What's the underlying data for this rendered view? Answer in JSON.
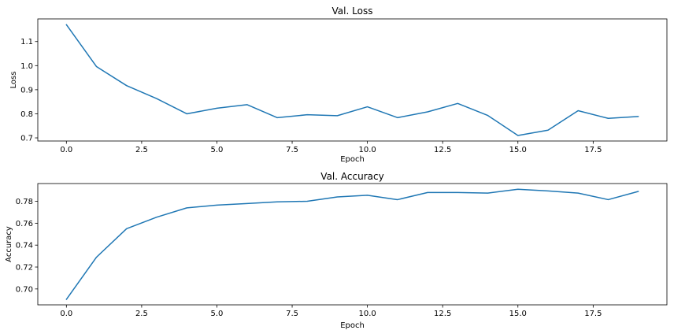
{
  "chart_data": [
    {
      "type": "line",
      "title": "Val. Loss",
      "xlabel": "Epoch",
      "ylabel": "Loss",
      "xlim": [
        -0.95,
        19.95
      ],
      "ylim": [
        0.687,
        1.194
      ],
      "xticks": [
        0.0,
        2.5,
        5.0,
        7.5,
        10.0,
        12.5,
        15.0,
        17.5
      ],
      "xtick_labels": [
        "0.0",
        "2.5",
        "5.0",
        "7.5",
        "10.0",
        "12.5",
        "15.0",
        "17.5"
      ],
      "yticks": [
        0.7,
        0.8,
        0.9,
        1.0,
        1.1
      ],
      "ytick_labels": [
        "0.7",
        "0.8",
        "0.9",
        "1.0",
        "1.1"
      ],
      "grid": false,
      "color": "#1f77b4",
      "series": [
        {
          "x": [
            0,
            1,
            2,
            3,
            4,
            5,
            6,
            7,
            8,
            9,
            10,
            11,
            12,
            13,
            14,
            15,
            16,
            17,
            18,
            19
          ],
          "values": [
            1.17,
            0.996,
            0.917,
            0.863,
            0.8,
            0.823,
            0.838,
            0.784,
            0.796,
            0.792,
            0.829,
            0.784,
            0.808,
            0.843,
            0.793,
            0.71,
            0.732,
            0.813,
            0.781,
            0.789
          ]
        }
      ]
    },
    {
      "type": "line",
      "title": "Val. Accuracy",
      "xlabel": "Epoch",
      "ylabel": "Accuracy",
      "xlim": [
        -0.95,
        19.95
      ],
      "ylim": [
        0.6855,
        0.7962
      ],
      "xticks": [
        0.0,
        2.5,
        5.0,
        7.5,
        10.0,
        12.5,
        15.0,
        17.5
      ],
      "xtick_labels": [
        "0.0",
        "2.5",
        "5.0",
        "7.5",
        "10.0",
        "12.5",
        "15.0",
        "17.5"
      ],
      "yticks": [
        0.7,
        0.72,
        0.74,
        0.76,
        0.78
      ],
      "ytick_labels": [
        "0.70",
        "0.72",
        "0.74",
        "0.76",
        "0.78"
      ],
      "grid": false,
      "color": "#1f77b4",
      "series": [
        {
          "x": [
            0,
            1,
            2,
            3,
            4,
            5,
            6,
            7,
            8,
            9,
            10,
            11,
            12,
            13,
            14,
            15,
            16,
            17,
            18,
            19
          ],
          "values": [
            0.6905,
            0.729,
            0.755,
            0.7655,
            0.774,
            0.7765,
            0.778,
            0.7795,
            0.78,
            0.784,
            0.7855,
            0.7815,
            0.788,
            0.788,
            0.7875,
            0.791,
            0.7895,
            0.7875,
            0.7815,
            0.789
          ]
        }
      ]
    }
  ]
}
